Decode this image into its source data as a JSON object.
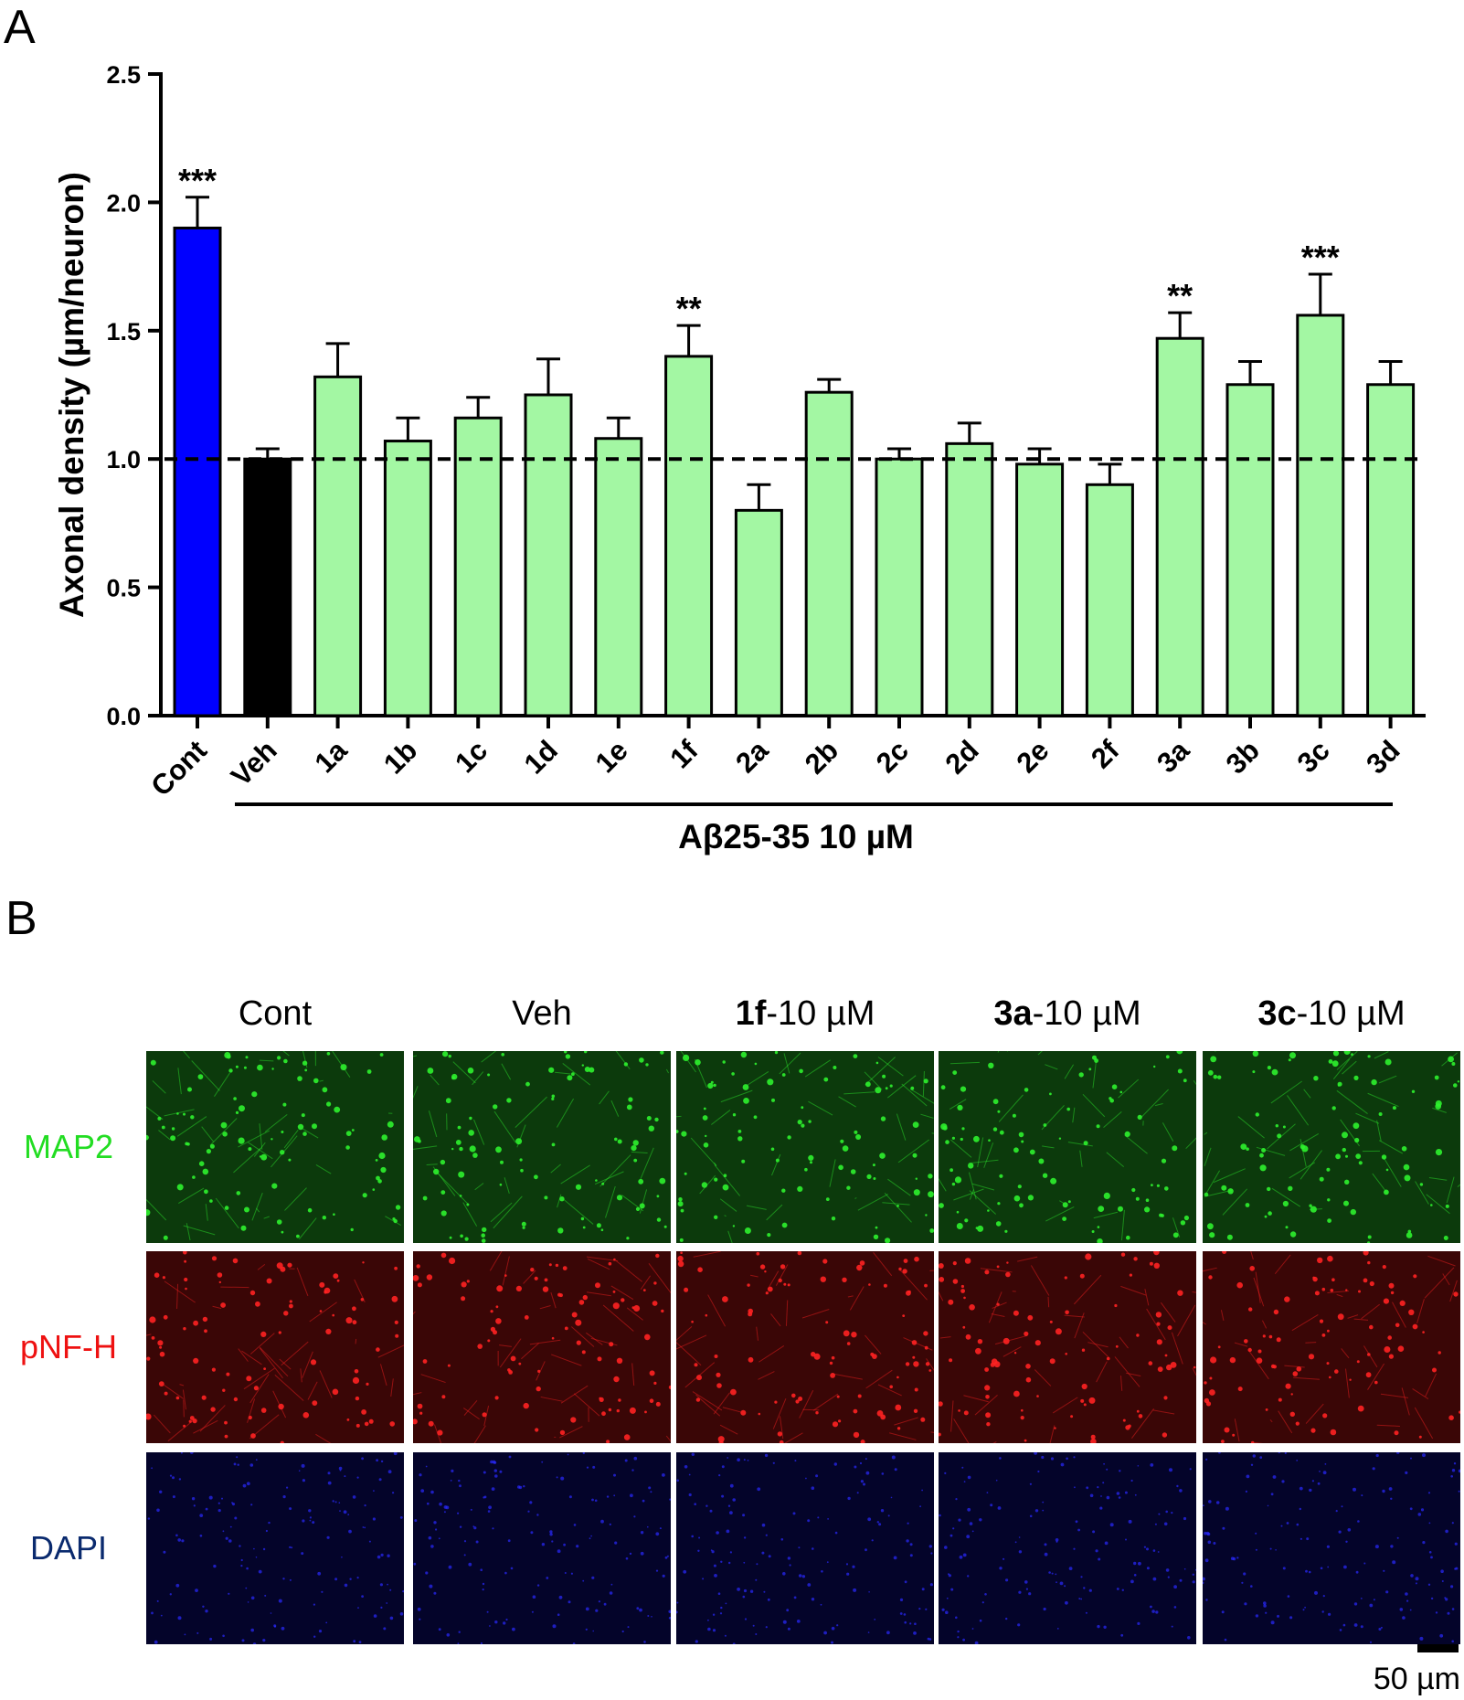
{
  "panel_labels": {
    "a": "A",
    "b": "B"
  },
  "chart_data": {
    "type": "bar",
    "ylabel": "Axonal density (µm/neuron)",
    "ylim": [
      0,
      2.5
    ],
    "yticks": [
      "0.0",
      "0.5",
      "1.0",
      "1.5",
      "2.0",
      "2.5"
    ],
    "categories": [
      "Cont",
      "Veh",
      "1a",
      "1b",
      "1c",
      "1d",
      "1e",
      "1f",
      "2a",
      "2b",
      "2c",
      "2d",
      "2e",
      "2f",
      "3a",
      "3b",
      "3c",
      "3d"
    ],
    "values": [
      1.9,
      1.0,
      1.32,
      1.07,
      1.16,
      1.25,
      1.08,
      1.4,
      0.8,
      1.26,
      1.0,
      1.06,
      0.98,
      0.9,
      1.47,
      1.29,
      1.56,
      1.29
    ],
    "errors": [
      0.12,
      0.04,
      0.13,
      0.09,
      0.08,
      0.14,
      0.08,
      0.12,
      0.1,
      0.05,
      0.04,
      0.08,
      0.06,
      0.08,
      0.1,
      0.09,
      0.16,
      0.09
    ],
    "significance": [
      "***",
      "",
      "",
      "",
      "",
      "",
      "",
      "**",
      "",
      "",
      "",
      "",
      "",
      "",
      "**",
      "",
      "***",
      ""
    ],
    "colors": {
      "control": "#0000ff",
      "vehicle": "#000000",
      "treatment": "#a3f7a3"
    },
    "reference_line": 1.0,
    "group_label": "Aβ25-35 10 µM",
    "grid": false,
    "legend": "none"
  },
  "microscopy": {
    "columns": [
      {
        "bold": "",
        "text": "Cont"
      },
      {
        "bold": "",
        "text": "Veh"
      },
      {
        "bold": "1f",
        "text": "-10 µM"
      },
      {
        "bold": "3a",
        "text": "-10 µM"
      },
      {
        "bold": "3c",
        "text": "-10 µM"
      }
    ],
    "rows": [
      {
        "label": "MAP2",
        "color": "#22dd22",
        "bg": "#0c3a0c",
        "dot": "#2ef22e"
      },
      {
        "label": "pNF-H",
        "color": "#ee1111",
        "bg": "#3a0606",
        "dot": "#ff2222"
      },
      {
        "label": "DAPI",
        "color": "#0a2a6e",
        "bg": "#04042a",
        "dot": "#2a2aff"
      }
    ],
    "scale_bar_label": "50 µm"
  }
}
